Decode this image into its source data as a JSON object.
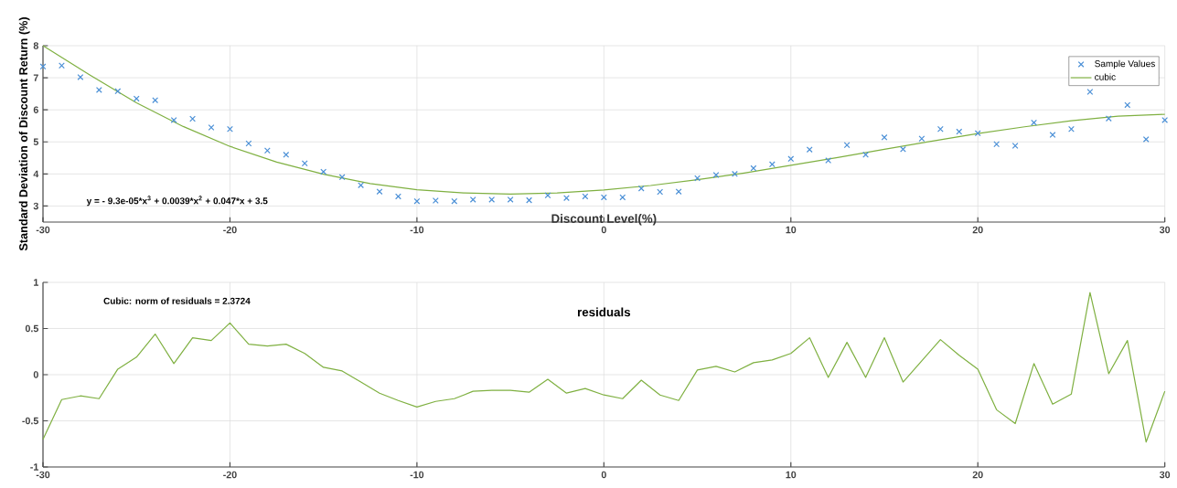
{
  "chart_data": [
    {
      "type": "scatter",
      "xlabel": "Discount Level(%)",
      "ylabel": "Standard Deviation of Discount Return (%)",
      "xlim": [
        -30,
        30
      ],
      "ylim": [
        2.5,
        8
      ],
      "xticks": [
        -30,
        -20,
        -10,
        0,
        10,
        20,
        30
      ],
      "yticks": [
        3,
        4,
        5,
        6,
        7,
        8
      ],
      "grid": true,
      "legend": "top right",
      "annotations": [
        "y = - 9.3e-05*x$^{3}$ + 0.0039*x$^{2}$ + 0.047*x + 3.5"
      ],
      "series": [
        {
          "name": "Sample Values",
          "type": "scatter",
          "marker": "cross",
          "color": "#4a8fd6",
          "x": [
            -30,
            -29,
            -28,
            -27,
            -26,
            -25,
            -24,
            -23,
            -22,
            -21,
            -20,
            -19,
            -18,
            -17,
            -16,
            -15,
            -14,
            -13,
            -12,
            -11,
            -10,
            -9,
            -8,
            -7,
            -6,
            -5,
            -4,
            -3,
            -2,
            -1,
            0,
            1,
            2,
            3,
            4,
            5,
            6,
            7,
            8,
            9,
            10,
            11,
            12,
            13,
            14,
            15,
            16,
            17,
            18,
            19,
            20,
            21,
            22,
            23,
            24,
            25,
            26,
            27,
            28,
            29,
            30
          ],
          "values": [
            7.35,
            7.38,
            7.02,
            6.62,
            6.58,
            6.35,
            6.3,
            5.68,
            5.72,
            5.45,
            5.4,
            4.95,
            4.73,
            4.6,
            4.33,
            4.07,
            3.9,
            3.65,
            3.45,
            3.3,
            3.15,
            3.17,
            3.15,
            3.2,
            3.2,
            3.2,
            3.18,
            3.33,
            3.25,
            3.3,
            3.27,
            3.27,
            3.55,
            3.44,
            3.45,
            3.87,
            3.97,
            4.0,
            4.18,
            4.3,
            4.47,
            4.76,
            4.42,
            4.9,
            4.6,
            5.14,
            4.77,
            5.1,
            5.4,
            5.32,
            5.27,
            4.93,
            4.88,
            5.6,
            5.22,
            5.4,
            6.56,
            5.73,
            6.15,
            5.08,
            5.68
          ]
        },
        {
          "name": "cubic",
          "type": "line",
          "marker": "none",
          "color": "#7fb041",
          "x": [
            -30,
            -27.5,
            -25,
            -22.5,
            -20,
            -17.5,
            -15,
            -12.5,
            -10,
            -7.5,
            -5,
            -2.5,
            0,
            2.5,
            5,
            7.5,
            10,
            12.5,
            15,
            17.5,
            20,
            22.5,
            25,
            27.5,
            30
          ],
          "values": [
            8.0,
            7.09,
            6.22,
            5.48,
            4.86,
            4.37,
            3.99,
            3.7,
            3.51,
            3.41,
            3.37,
            3.41,
            3.5,
            3.64,
            3.82,
            4.03,
            4.27,
            4.51,
            4.77,
            5.02,
            5.26,
            5.47,
            5.66,
            5.8,
            5.86
          ]
        }
      ]
    },
    {
      "type": "line",
      "title": "residuals",
      "xlim": [
        -30,
        30
      ],
      "ylim": [
        -1,
        1
      ],
      "xticks": [
        -30,
        -20,
        -10,
        0,
        10,
        20,
        30
      ],
      "yticks": [
        -1,
        -0.5,
        0,
        0.5,
        1
      ],
      "grid": true,
      "marker": "none",
      "color": "#7fb041",
      "annotations": [
        "Cubic: norm of residuals = 2.3724"
      ],
      "x": [
        -30,
        -29,
        -28,
        -27,
        -26,
        -25,
        -24,
        -23,
        -22,
        -21,
        -20,
        -19,
        -18,
        -17,
        -16,
        -15,
        -14,
        -13,
        -12,
        -11,
        -10,
        -9,
        -8,
        -7,
        -6,
        -5,
        -4,
        -3,
        -2,
        -1,
        0,
        1,
        2,
        3,
        4,
        5,
        6,
        7,
        8,
        9,
        10,
        11,
        12,
        13,
        14,
        15,
        16,
        17,
        18,
        19,
        20,
        21,
        22,
        23,
        24,
        25,
        26,
        27,
        28,
        29,
        30
      ],
      "values": [
        -0.7,
        -0.27,
        -0.23,
        -0.26,
        0.06,
        0.19,
        0.44,
        0.12,
        0.4,
        0.37,
        0.56,
        0.33,
        0.31,
        0.33,
        0.23,
        0.08,
        0.04,
        -0.08,
        -0.2,
        -0.28,
        -0.35,
        -0.29,
        -0.26,
        -0.18,
        -0.17,
        -0.17,
        -0.19,
        -0.05,
        -0.2,
        -0.15,
        -0.22,
        -0.26,
        -0.06,
        -0.22,
        -0.28,
        0.05,
        0.09,
        0.03,
        0.13,
        0.16,
        0.23,
        0.4,
        -0.03,
        0.35,
        -0.03,
        0.4,
        -0.08,
        0.15,
        0.38,
        0.21,
        0.06,
        -0.38,
        -0.53,
        0.12,
        -0.32,
        -0.21,
        0.89,
        0.01,
        0.37,
        -0.73,
        -0.18
      ]
    }
  ]
}
